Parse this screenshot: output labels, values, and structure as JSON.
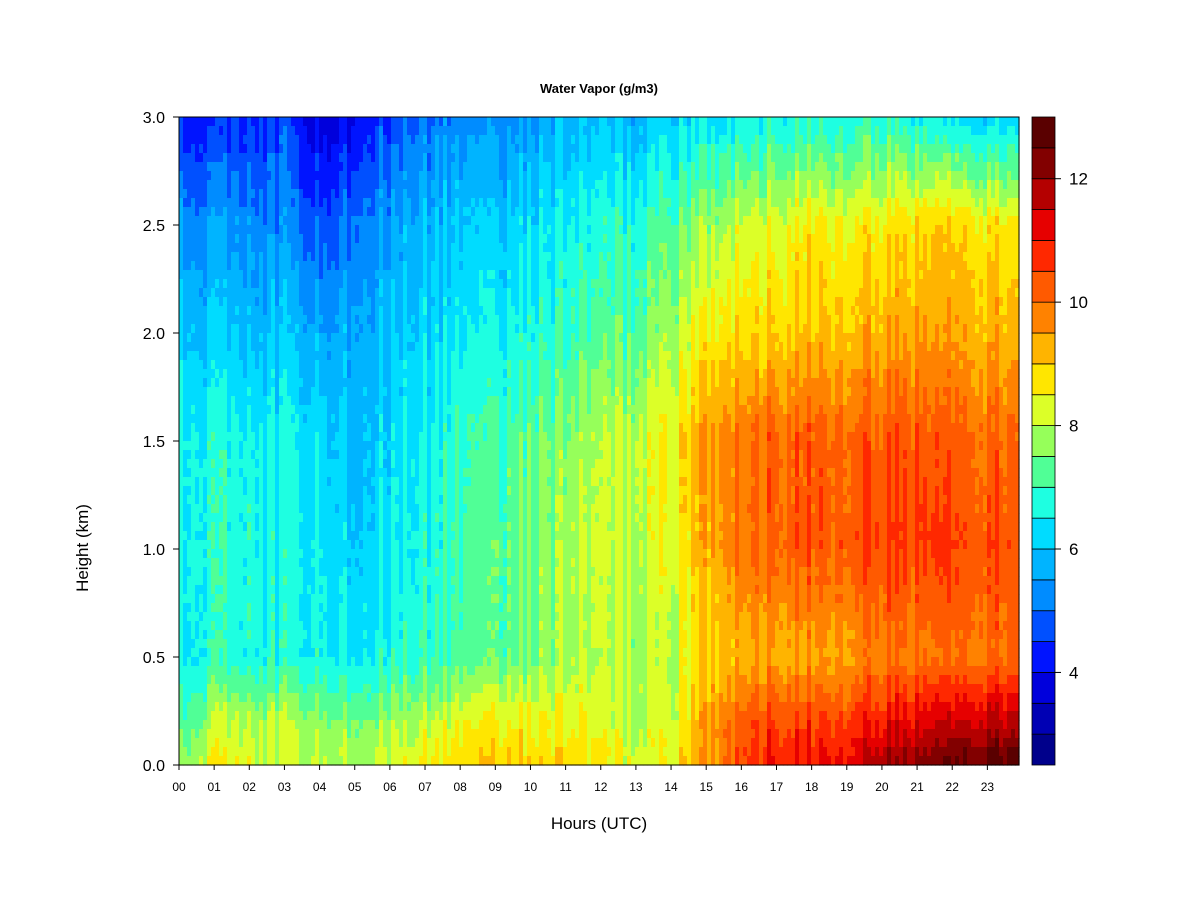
{
  "chart_data": {
    "type": "heatmap",
    "title": "Water Vapor (g/m3)",
    "xlabel": "Hours (UTC)",
    "ylabel": "Height (km)",
    "x_ticks": [
      "00",
      "01",
      "02",
      "03",
      "04",
      "05",
      "06",
      "07",
      "08",
      "09",
      "10",
      "11",
      "12",
      "13",
      "14",
      "15",
      "16",
      "17",
      "18",
      "19",
      "20",
      "21",
      "22",
      "23"
    ],
    "y_ticks": [
      "0.0",
      "0.5",
      "1.0",
      "1.5",
      "2.0",
      "2.5",
      "3.0"
    ],
    "xlim": [
      0,
      23.9
    ],
    "ylim": [
      0,
      3.0
    ],
    "colorbar": {
      "range": [
        2.5,
        13
      ],
      "step": 0.5,
      "ticks": [
        "4",
        "6",
        "8",
        "10",
        "12"
      ],
      "tick_values": [
        4,
        6,
        8,
        10,
        12
      ],
      "colors": [
        "#00008b",
        "#0000b4",
        "#0000dc",
        "#0014ff",
        "#0050ff",
        "#008cff",
        "#00b4ff",
        "#00dcff",
        "#1effe1",
        "#50ff96",
        "#96ff5a",
        "#dcff28",
        "#ffe600",
        "#ffb400",
        "#ff8200",
        "#ff5a00",
        "#ff2800",
        "#e60000",
        "#b40000",
        "#820000",
        "#5a0000"
      ]
    },
    "heights": [
      0.0,
      0.2,
      0.5,
      1.0,
      1.5,
      2.0,
      2.5,
      3.0
    ],
    "hours": [
      0,
      1,
      3,
      4,
      5,
      7,
      9,
      11,
      13,
      14,
      15,
      16,
      17,
      18,
      19,
      20,
      21,
      22,
      23,
      23.9
    ],
    "values": [
      [
        7.8,
        8.5,
        8.0,
        8.2,
        8.0,
        8.6,
        9.0,
        8.8,
        8.3,
        8.4,
        9.5,
        10.6,
        11.0,
        11.0,
        11.4,
        11.9,
        12.2,
        12.6,
        12.7,
        12.8
      ],
      [
        7.2,
        8.0,
        7.9,
        7.8,
        7.6,
        8.0,
        8.6,
        8.4,
        8.0,
        8.2,
        9.4,
        10.4,
        10.6,
        10.5,
        10.7,
        11.0,
        11.2,
        11.4,
        11.6,
        11.7
      ],
      [
        6.7,
        6.8,
        6.7,
        6.7,
        6.6,
        6.9,
        7.3,
        7.8,
        7.9,
        8.0,
        8.9,
        9.3,
        9.4,
        9.4,
        9.6,
        9.8,
        9.8,
        9.9,
        10.0,
        10.1
      ],
      [
        6.8,
        6.8,
        6.6,
        6.6,
        6.2,
        6.7,
        7.3,
        7.8,
        8.1,
        8.3,
        9.3,
        10.0,
        10.2,
        10.3,
        10.4,
        10.5,
        10.6,
        10.5,
        10.4,
        10.4
      ],
      [
        6.8,
        6.7,
        6.5,
        6.4,
        6.0,
        6.6,
        7.1,
        7.6,
        8.1,
        8.5,
        9.5,
        10.0,
        10.2,
        10.2,
        10.3,
        10.3,
        10.3,
        10.2,
        10.1,
        10.1
      ],
      [
        6.2,
        6.0,
        5.9,
        5.7,
        5.8,
        6.2,
        6.6,
        6.9,
        7.3,
        7.8,
        8.6,
        8.9,
        9.0,
        9.1,
        9.2,
        9.3,
        9.4,
        9.4,
        9.3,
        9.3
      ],
      [
        5.5,
        5.4,
        5.2,
        4.8,
        5.2,
        5.8,
        6.1,
        6.5,
        6.8,
        7.2,
        7.8,
        8.2,
        8.4,
        8.6,
        8.6,
        8.6,
        8.8,
        8.9,
        8.7,
        8.7
      ],
      [
        4.6,
        4.2,
        4.6,
        3.8,
        4.2,
        5.1,
        5.3,
        5.7,
        5.8,
        6.2,
        6.3,
        6.6,
        6.7,
        6.7,
        6.8,
        6.8,
        6.6,
        6.3,
        6.2,
        6.2
      ]
    ]
  }
}
